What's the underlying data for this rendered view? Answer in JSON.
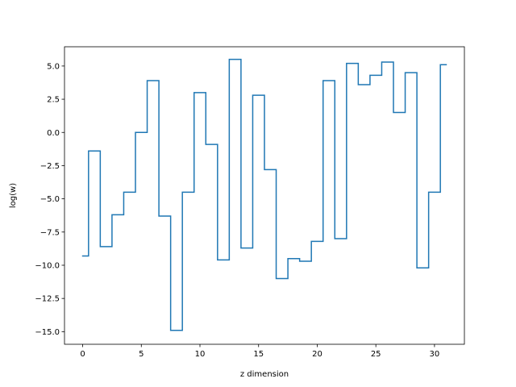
{
  "chart_data": {
    "type": "line",
    "drawstyle": "steps-mid",
    "title": "",
    "xlabel": "z dimension",
    "ylabel": "log(w)",
    "xlim": [
      -1.55,
      32.55
    ],
    "ylim": [
      -15.95,
      6.45
    ],
    "xticks": [
      0,
      5,
      10,
      15,
      20,
      25,
      30
    ],
    "xtick_labels": [
      "0",
      "5",
      "10",
      "15",
      "20",
      "25",
      "30"
    ],
    "yticks": [
      -15.0,
      -12.5,
      -10.0,
      -7.5,
      -5.0,
      -2.5,
      0.0,
      2.5,
      5.0
    ],
    "ytick_labels": [
      "−15.0",
      "−12.5",
      "−10.0",
      "−7.5",
      "−5.0",
      "−2.5",
      "0.0",
      "2.5",
      "5.0"
    ],
    "grid": false,
    "series": [
      {
        "color": "#1f77b4",
        "x": [
          0,
          1,
          2,
          3,
          4,
          5,
          6,
          7,
          8,
          9,
          10,
          11,
          12,
          13,
          14,
          15,
          16,
          17,
          18,
          19,
          20,
          21,
          22,
          23,
          24,
          25,
          26,
          27,
          28,
          29,
          30,
          31
        ],
        "y": [
          -9.3,
          -1.4,
          -8.6,
          -6.2,
          -4.5,
          0.0,
          3.9,
          -6.3,
          -14.9,
          -4.5,
          3.0,
          -0.9,
          -9.6,
          5.5,
          -8.7,
          2.8,
          -2.8,
          -11.0,
          -9.5,
          -9.7,
          -8.2,
          3.9,
          -8.0,
          5.2,
          3.6,
          4.3,
          5.3,
          1.5,
          4.5,
          -10.2,
          -4.5,
          5.1
        ]
      }
    ]
  }
}
